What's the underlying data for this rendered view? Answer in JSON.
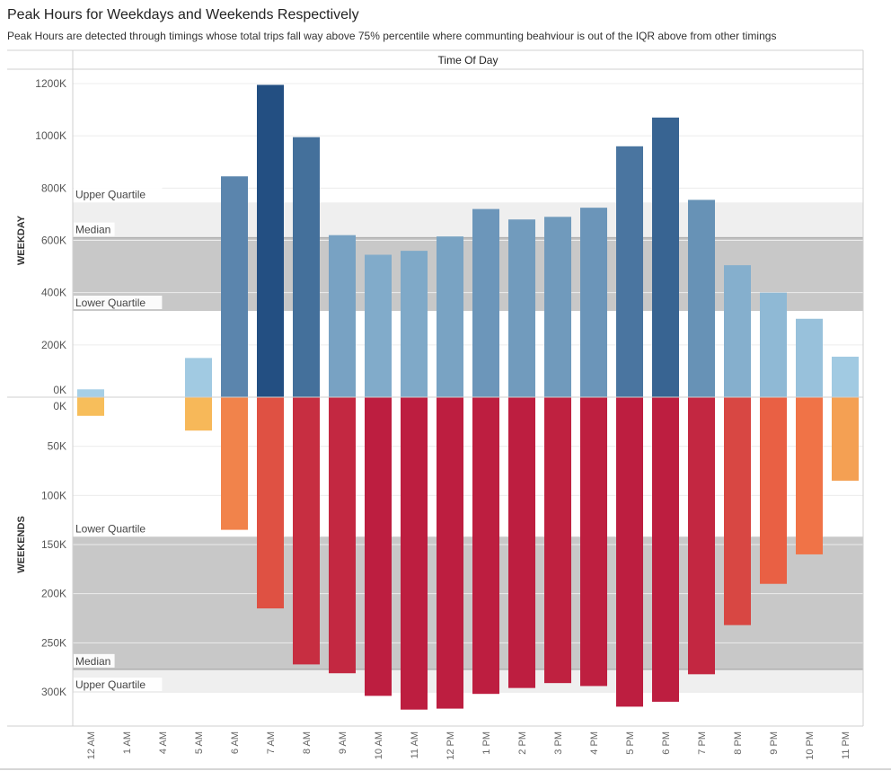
{
  "title": "Peak Hours for Weekdays and Weekends Respectively",
  "subtitle": "Peak Hours are detected through timings whose total trips fall way above 75% percentile where communting beahviour is out of the IQR above from other timings",
  "chart_data": {
    "type": "bar",
    "column_header": "Time Of Day",
    "categories": [
      "12 AM",
      "1 AM",
      "4 AM",
      "5 AM",
      "6 AM",
      "7 AM",
      "8 AM",
      "9 AM",
      "10 AM",
      "11 AM",
      "12 PM",
      "1 PM",
      "2 PM",
      "3 PM",
      "4 PM",
      "5 PM",
      "6 PM",
      "7 PM",
      "8 PM",
      "9 PM",
      "10 PM",
      "11 PM"
    ],
    "panels": [
      {
        "name": "WEEKDAY",
        "ylim": [
          0,
          1200000
        ],
        "ticks": [
          0,
          200000,
          400000,
          600000,
          800000,
          1000000,
          1200000
        ],
        "tick_labels": [
          "0K",
          "200K",
          "400K",
          "600K",
          "800K",
          "1000K",
          "1200K"
        ],
        "values": [
          30000,
          0,
          0,
          150000,
          845000,
          1195000,
          995000,
          620000,
          545000,
          560000,
          615000,
          720000,
          680000,
          690000,
          725000,
          960000,
          1070000,
          755000,
          505000,
          400000,
          300000,
          155000
        ],
        "reference_lines": [
          {
            "label": "Upper Quartile",
            "value": 745000
          },
          {
            "label": "Median",
            "value": 610000
          },
          {
            "label": "Lower Quartile",
            "value": 330000
          }
        ]
      },
      {
        "name": "WEEKENDS",
        "ylim": [
          0,
          330000
        ],
        "ticks": [
          0,
          50000,
          100000,
          150000,
          200000,
          250000,
          300000
        ],
        "tick_labels": [
          "0K",
          "50K",
          "100K",
          "150K",
          "200K",
          "250K",
          "300K"
        ],
        "values": [
          19000,
          0,
          0,
          34000,
          135000,
          215000,
          272000,
          281000,
          304000,
          318000,
          317000,
          302000,
          296000,
          291000,
          294000,
          315000,
          310000,
          282000,
          232000,
          190000,
          160000,
          85000
        ],
        "reference_lines": [
          {
            "label": "Lower Quartile",
            "value": 142000
          },
          {
            "label": "Median",
            "value": 277000
          },
          {
            "label": "Upper Quartile",
            "value": 301000
          }
        ]
      }
    ],
    "colors": {
      "weekday_light": "#a6cfe6",
      "weekday_dark": "#234f82",
      "weekend_light": "#f8c35c",
      "weekend_dark": "#bd1e40",
      "band_outer": "#efefef",
      "band_inner": "#c8c8c8"
    }
  }
}
